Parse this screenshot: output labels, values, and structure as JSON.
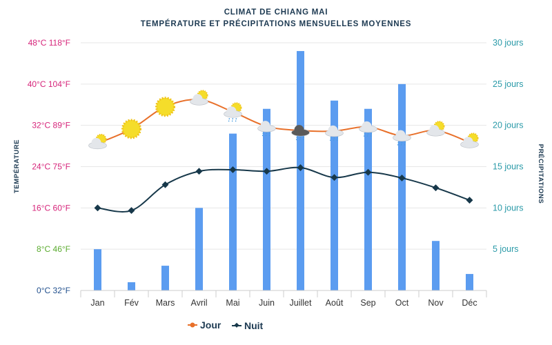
{
  "chart_data": {
    "type": "bar+line",
    "title": "CLIMAT DE CHIANG MAI",
    "subtitle": "TEMPÉRATURE ET PRÉCIPITATIONS MENSUELLES MOYENNES",
    "categories": [
      "Jan",
      "Fév",
      "Mars",
      "Avril",
      "Mai",
      "Juin",
      "Juillet",
      "Août",
      "Sep",
      "Oct",
      "Nov",
      "Déc"
    ],
    "ylabel_left": "TEMPÉRATURE",
    "ylabel_right": "PRÉCIPITATIONS",
    "ylim_left": [
      0,
      48
    ],
    "ylim_right": [
      0,
      30
    ],
    "left_ticks": [
      {
        "v": 0,
        "label": "0°C 32°F",
        "color": "#1f4e8c"
      },
      {
        "v": 8,
        "label": "8°C 46°F",
        "color": "#5aab2e"
      },
      {
        "v": 16,
        "label": "16°C 60°F",
        "color": "#d6247a"
      },
      {
        "v": 24,
        "label": "24°C 75°F",
        "color": "#d6247a"
      },
      {
        "v": 32,
        "label": "32°C 89°F",
        "color": "#d6247a"
      },
      {
        "v": 40,
        "label": "40°C 104°F",
        "color": "#d6247a"
      },
      {
        "v": 48,
        "label": "48°C 118°F",
        "color": "#d6247a"
      }
    ],
    "right_ticks": [
      {
        "v": 5,
        "label": "5 jours"
      },
      {
        "v": 10,
        "label": "10 jours"
      },
      {
        "v": 15,
        "label": "15 jours"
      },
      {
        "v": 20,
        "label": "20 jours"
      },
      {
        "v": 25,
        "label": "25 jours"
      },
      {
        "v": 30,
        "label": "30 jours"
      }
    ],
    "grid": true,
    "legend_position": "bottom",
    "series": [
      {
        "name": "Jour",
        "type": "line",
        "axis": "left",
        "color": "#e8702a",
        "values": [
          28.5,
          31.3,
          35.6,
          37,
          34.6,
          31.8,
          31,
          30.9,
          31.7,
          30,
          31,
          28.7
        ]
      },
      {
        "name": "Nuit",
        "type": "line",
        "axis": "left",
        "color": "#17384a",
        "values": [
          16,
          15.5,
          20.5,
          23.1,
          23.4,
          23.1,
          23.8,
          21.9,
          22.9,
          21.8,
          19.9,
          17.5
        ]
      },
      {
        "type": "bar",
        "axis": "right",
        "color": "#5b9cf0",
        "values": [
          5,
          1,
          3,
          10,
          19,
          22,
          29,
          23,
          22,
          25,
          6,
          2
        ]
      }
    ],
    "weather_icons": [
      "sun-cloud",
      "sun",
      "sun",
      "sun-cloud",
      "rain-sun-cloud",
      "rain-cloud",
      "storm-cloud",
      "rain-cloud",
      "rain-cloud",
      "rain-cloud",
      "sun-cloud",
      "sun-cloud"
    ]
  }
}
